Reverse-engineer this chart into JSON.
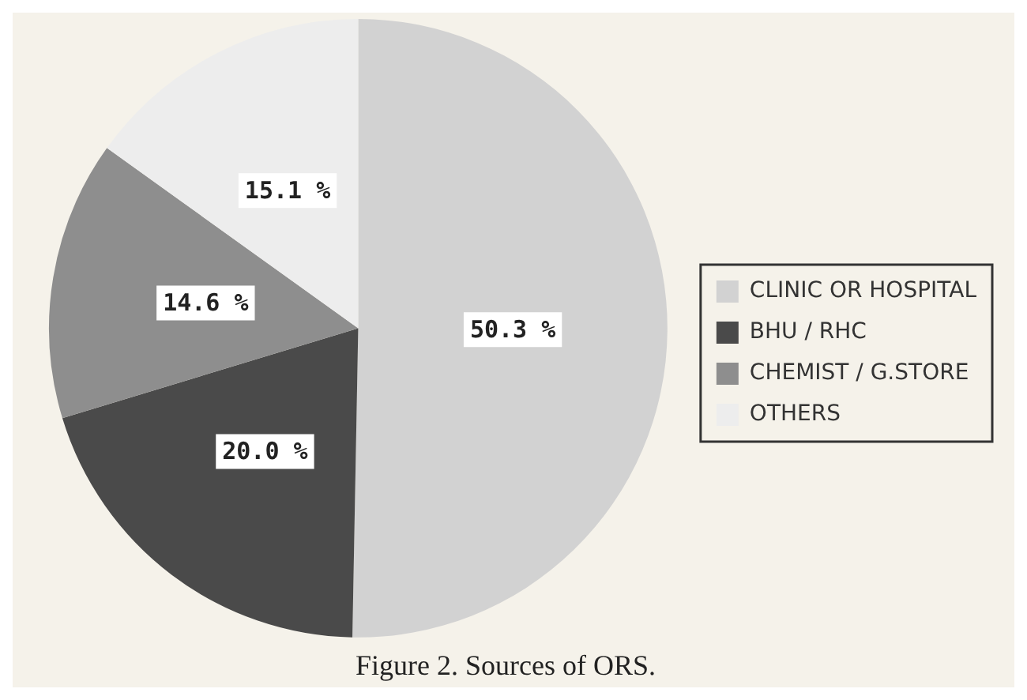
{
  "chart_data": {
    "type": "pie",
    "title": "Figure 2. Sources of ORS.",
    "categories": [
      "CLINIC OR HOSPITAL",
      "BHU / RHC",
      "CHEMIST / G.STORE",
      "OTHERS"
    ],
    "values": [
      50.3,
      20.0,
      14.6,
      15.1
    ],
    "value_labels": [
      "50.3 %",
      "20.0 %",
      "14.6 %",
      "15.1 %"
    ],
    "colors": [
      "#d2d2d2",
      "#4a4a4a",
      "#8e8e8e",
      "#ededed"
    ],
    "legend": "right"
  }
}
